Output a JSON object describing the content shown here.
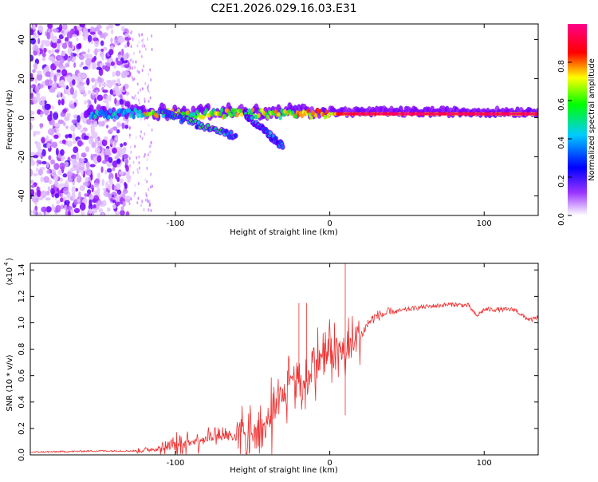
{
  "page_title": "C2E1.2026.029.16.03.E31",
  "chart_data": [
    {
      "type": "heatmap",
      "name": "spectrogram",
      "title": "C2E1.2026.029.16.03.E31",
      "xlabel": "Height of straight line (km)",
      "ylabel": "Frequency (Hz)",
      "xlim": [
        -194,
        135
      ],
      "ylim": [
        -50,
        48
      ],
      "xticks": [
        -100,
        0,
        100
      ],
      "yticks": [
        -40,
        -20,
        0,
        20,
        40
      ],
      "colorbar": {
        "label": "Normalized spectral amplitude",
        "range": [
          0,
          1
        ],
        "ticks": [
          0.0,
          0.2,
          0.4,
          0.6,
          0.8
        ],
        "colors": [
          "#ffffff",
          "#8800ff",
          "#0000ff",
          "#00c8ff",
          "#00ff00",
          "#ffff00",
          "#ff0000",
          "#ff00aa"
        ]
      },
      "features": [
        {
          "name": "scatter noise region",
          "x_range": [
            -194,
            -130
          ],
          "y_range": [
            -50,
            48
          ],
          "amplitude": 0.15
        },
        {
          "name": "main carrier band",
          "x_range": [
            -160,
            135
          ],
          "y": 2,
          "amplitude": 1.0
        },
        {
          "name": "descending trace 1",
          "x": [
            -110,
            -60
          ],
          "y": [
            3,
            -10
          ],
          "amplitude": 0.5
        },
        {
          "name": "descending trace 2",
          "x": [
            -55,
            -30
          ],
          "y": [
            2,
            -15
          ],
          "amplitude": 0.4
        }
      ]
    },
    {
      "type": "line",
      "name": "snr",
      "xlabel": "Height of straight line (km)",
      "ylabel": "SNR (10 * v/v)",
      "yscale_label": "(x10",
      "yscale_exp": "4",
      "xlim": [
        -194,
        135
      ],
      "ylim": [
        0,
        1.45
      ],
      "xticks": [
        -100,
        0,
        100
      ],
      "yticks": [
        "0.0",
        "0.2",
        "0.4",
        "0.6",
        "0.8",
        "1.0",
        "1.2",
        "1.4"
      ],
      "color": "#ee3333",
      "series_envelope": {
        "x": [
          -194,
          -150,
          -125,
          -110,
          -90,
          -75,
          -60,
          -45,
          -35,
          -30,
          -25,
          -20,
          -15,
          -10,
          -5,
          0,
          5,
          10,
          15,
          20,
          25,
          30,
          40,
          50,
          60,
          70,
          80,
          90,
          95,
          100,
          110,
          120,
          125,
          130,
          135
        ],
        "y": [
          0.02,
          0.03,
          0.03,
          0.05,
          0.1,
          0.15,
          0.15,
          0.2,
          0.3,
          0.45,
          0.6,
          0.55,
          0.55,
          0.7,
          0.75,
          0.8,
          0.8,
          0.75,
          0.85,
          0.9,
          1.0,
          1.05,
          1.08,
          1.1,
          1.12,
          1.13,
          1.14,
          1.13,
          1.05,
          1.1,
          1.1,
          1.1,
          1.05,
          1.02,
          1.04
        ]
      },
      "spikes": [
        {
          "x": 10,
          "y": 1.47
        },
        {
          "x": -15,
          "y": 1.15
        },
        {
          "x": -20,
          "y": 1.15
        },
        {
          "x": 10,
          "y": 0.3
        }
      ]
    }
  ]
}
